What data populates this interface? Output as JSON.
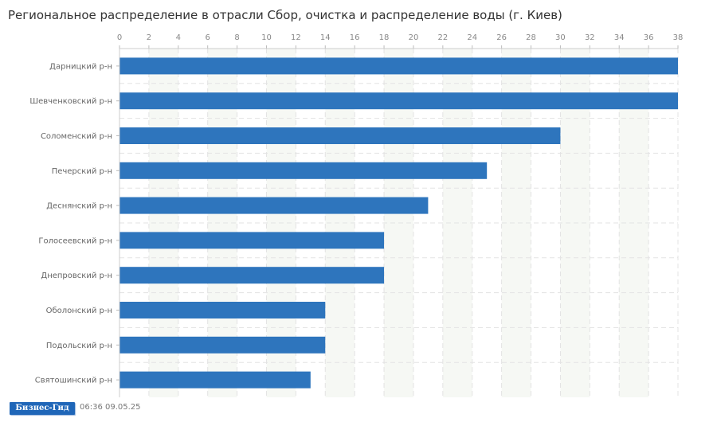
{
  "brand": {
    "logo_text": "Бизнес-Гид",
    "timestamp": "06:36 09.05.25"
  },
  "chart_data": {
    "type": "bar",
    "orientation": "horizontal",
    "title": "Региональное распределение в отрасли Сбор, очистка и распределение воды (г. Киев)",
    "xlabel": "",
    "ylabel": "",
    "categories": [
      "Дарницкий р-н",
      "Шевченковский р-н",
      "Соломенский р-н",
      "Печерский р-н",
      "Деснянский р-н",
      "Голосеевский р-н",
      "Днепровский р-н",
      "Оболонский р-н",
      "Подольский р-н",
      "Святошинский р-н"
    ],
    "values": [
      38,
      38,
      30,
      25,
      21,
      18,
      18,
      14,
      14,
      13
    ],
    "xlim": [
      0,
      38
    ],
    "xticks": [
      0,
      2,
      4,
      6,
      8,
      10,
      12,
      14,
      16,
      18,
      20,
      22,
      24,
      26,
      28,
      30,
      32,
      34,
      36,
      38
    ],
    "axis_position": "top",
    "grid": true,
    "bar_color": "#2e75bd",
    "grid_color": "#e3e3e3",
    "band_color": "#f6f8f4"
  }
}
